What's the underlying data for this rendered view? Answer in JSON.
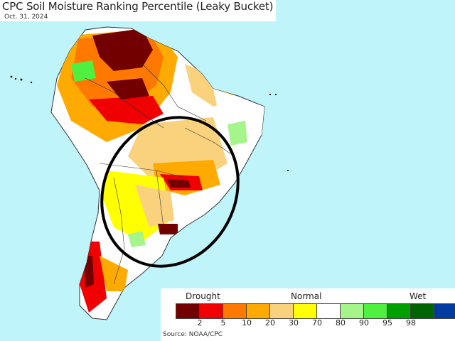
{
  "title": "CPC Soil Moisture Ranking Percentile (Leaky Bucket)",
  "date": "Oct. 31, 2024",
  "source": "Source: NOAA/CPC",
  "legend": {
    "left_label": "Drought",
    "mid_label": "Normal",
    "right_label": "Wet",
    "colors": [
      "#720000",
      "#f00000",
      "#ff7800",
      "#ffaa00",
      "#fad27e",
      "#ffff00",
      "#ffffff",
      "#a5f58a",
      "#50f040",
      "#00a000",
      "#006400",
      "#003ca0"
    ],
    "ticks": [
      "2",
      "5",
      "10",
      "20",
      "30",
      "70",
      "80",
      "90",
      "95",
      "98"
    ]
  },
  "colors": {
    "ocean": "#bff4fb",
    "land": "#ffffff",
    "border": "#222222",
    "ellipse": "#000000"
  }
}
